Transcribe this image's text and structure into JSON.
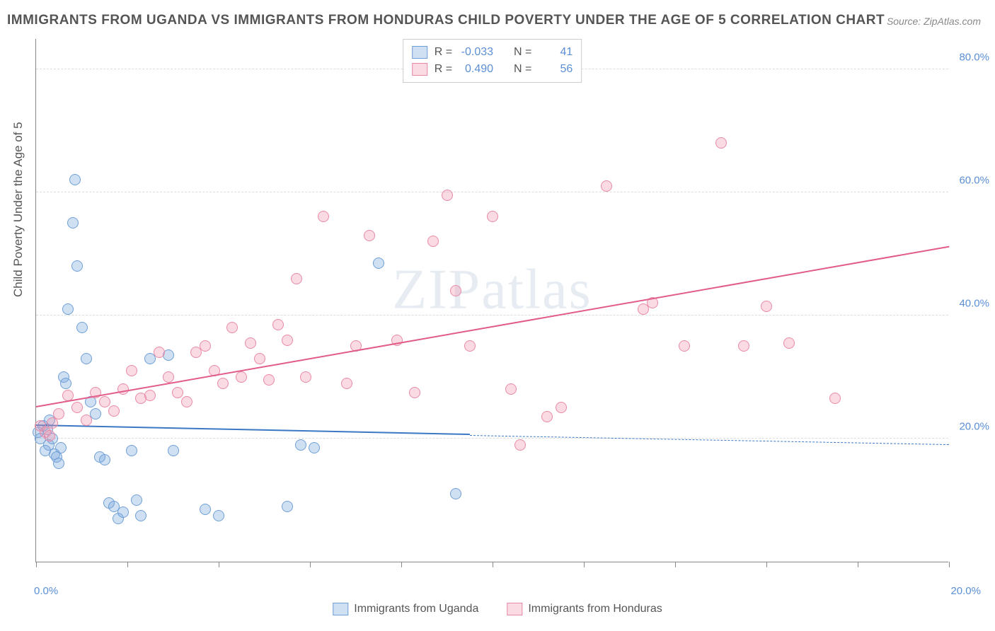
{
  "title": "IMMIGRANTS FROM UGANDA VS IMMIGRANTS FROM HONDURAS CHILD POVERTY UNDER THE AGE OF 5 CORRELATION CHART",
  "source_prefix": "Source: ",
  "source": "ZipAtlas.com",
  "watermark": "ZIPatlas",
  "y_axis_title": "Child Poverty Under the Age of 5",
  "chart": {
    "type": "scatter",
    "xlim": [
      0,
      20
    ],
    "ylim": [
      0,
      85
    ],
    "x_ticks": [
      0,
      2,
      4,
      6,
      8,
      10,
      12,
      14,
      16,
      18,
      20
    ],
    "x_tick_labels": {
      "0": "0.0%",
      "20": "20.0%"
    },
    "y_ticks": [
      20,
      40,
      60,
      80
    ],
    "y_tick_labels": [
      "20.0%",
      "40.0%",
      "60.0%",
      "80.0%"
    ],
    "background_color": "#ffffff",
    "grid_color": "#dcdcdc",
    "marker_radius": 8,
    "marker_stroke_width": 1.2,
    "series": [
      {
        "name": "Immigrants from Uganda",
        "fill_color": "rgba(120,165,220,0.35)",
        "stroke_color": "#6f9fd6",
        "trend_color": "#3b78c4",
        "R": "-0.033",
        "N": "41",
        "trend": {
          "x1": 0,
          "y1": 22,
          "x2_solid": 9.5,
          "y2_solid": 20.5,
          "x2": 20,
          "y2": 19
        },
        "points": [
          [
            0.05,
            21
          ],
          [
            0.1,
            20
          ],
          [
            0.15,
            22
          ],
          [
            0.2,
            18
          ],
          [
            0.25,
            21.5
          ],
          [
            0.28,
            19
          ],
          [
            0.3,
            23
          ],
          [
            0.35,
            20
          ],
          [
            0.4,
            17.5
          ],
          [
            0.45,
            17
          ],
          [
            0.5,
            16
          ],
          [
            0.55,
            18.5
          ],
          [
            0.6,
            30
          ],
          [
            0.65,
            29
          ],
          [
            0.7,
            41
          ],
          [
            0.8,
            55
          ],
          [
            0.85,
            62
          ],
          [
            0.9,
            48
          ],
          [
            1.0,
            38
          ],
          [
            1.1,
            33
          ],
          [
            1.2,
            26
          ],
          [
            1.3,
            24
          ],
          [
            1.4,
            17
          ],
          [
            1.5,
            16.5
          ],
          [
            1.6,
            9.5
          ],
          [
            1.7,
            9
          ],
          [
            1.8,
            7
          ],
          [
            1.9,
            8
          ],
          [
            2.1,
            18
          ],
          [
            2.2,
            10
          ],
          [
            2.3,
            7.5
          ],
          [
            2.5,
            33
          ],
          [
            2.9,
            33.5
          ],
          [
            3.0,
            18
          ],
          [
            3.7,
            8.5
          ],
          [
            4.0,
            7.5
          ],
          [
            5.5,
            9
          ],
          [
            5.8,
            19
          ],
          [
            7.5,
            48.5
          ],
          [
            9.2,
            11
          ],
          [
            6.1,
            18.5
          ]
        ]
      },
      {
        "name": "Immigrants from Honduras",
        "fill_color": "rgba(240,150,175,0.35)",
        "stroke_color": "#e98aa5",
        "trend_color": "#e15c8a",
        "R": "0.490",
        "N": "56",
        "trend": {
          "x1": 0,
          "y1": 25,
          "x2_solid": 20,
          "y2_solid": 51,
          "x2": 20,
          "y2": 51
        },
        "points": [
          [
            0.1,
            22
          ],
          [
            0.2,
            21
          ],
          [
            0.3,
            20.5
          ],
          [
            0.35,
            22.5
          ],
          [
            0.5,
            24
          ],
          [
            0.7,
            27
          ],
          [
            0.9,
            25
          ],
          [
            1.1,
            23
          ],
          [
            1.3,
            27.5
          ],
          [
            1.5,
            26
          ],
          [
            1.7,
            24.5
          ],
          [
            1.9,
            28
          ],
          [
            2.1,
            31
          ],
          [
            2.3,
            26.5
          ],
          [
            2.5,
            27
          ],
          [
            2.7,
            34
          ],
          [
            2.9,
            30
          ],
          [
            3.1,
            27.5
          ],
          [
            3.3,
            26
          ],
          [
            3.5,
            34
          ],
          [
            3.7,
            35
          ],
          [
            3.9,
            31
          ],
          [
            4.1,
            29
          ],
          [
            4.3,
            38
          ],
          [
            4.5,
            30
          ],
          [
            4.7,
            35.5
          ],
          [
            4.9,
            33
          ],
          [
            5.1,
            29.5
          ],
          [
            5.3,
            38.5
          ],
          [
            5.5,
            36
          ],
          [
            5.7,
            46
          ],
          [
            5.9,
            30
          ],
          [
            6.3,
            56
          ],
          [
            6.8,
            29
          ],
          [
            7.0,
            35
          ],
          [
            7.3,
            53
          ],
          [
            7.9,
            36
          ],
          [
            8.3,
            27.5
          ],
          [
            8.7,
            52
          ],
          [
            9.0,
            59.5
          ],
          [
            9.2,
            44
          ],
          [
            9.5,
            35
          ],
          [
            10.0,
            56
          ],
          [
            10.4,
            28
          ],
          [
            10.6,
            19
          ],
          [
            11.2,
            23.5
          ],
          [
            11.5,
            25
          ],
          [
            12.5,
            61
          ],
          [
            13.3,
            41
          ],
          [
            13.5,
            42
          ],
          [
            14.2,
            35
          ],
          [
            15.0,
            68
          ],
          [
            16.0,
            41.5
          ],
          [
            16.5,
            35.5
          ],
          [
            17.5,
            26.5
          ],
          [
            15.5,
            35
          ]
        ]
      }
    ]
  },
  "legend_labels": {
    "R": "R =",
    "N": "N ="
  },
  "bottom_legend": [
    "Immigrants from Uganda",
    "Immigrants from Honduras"
  ]
}
